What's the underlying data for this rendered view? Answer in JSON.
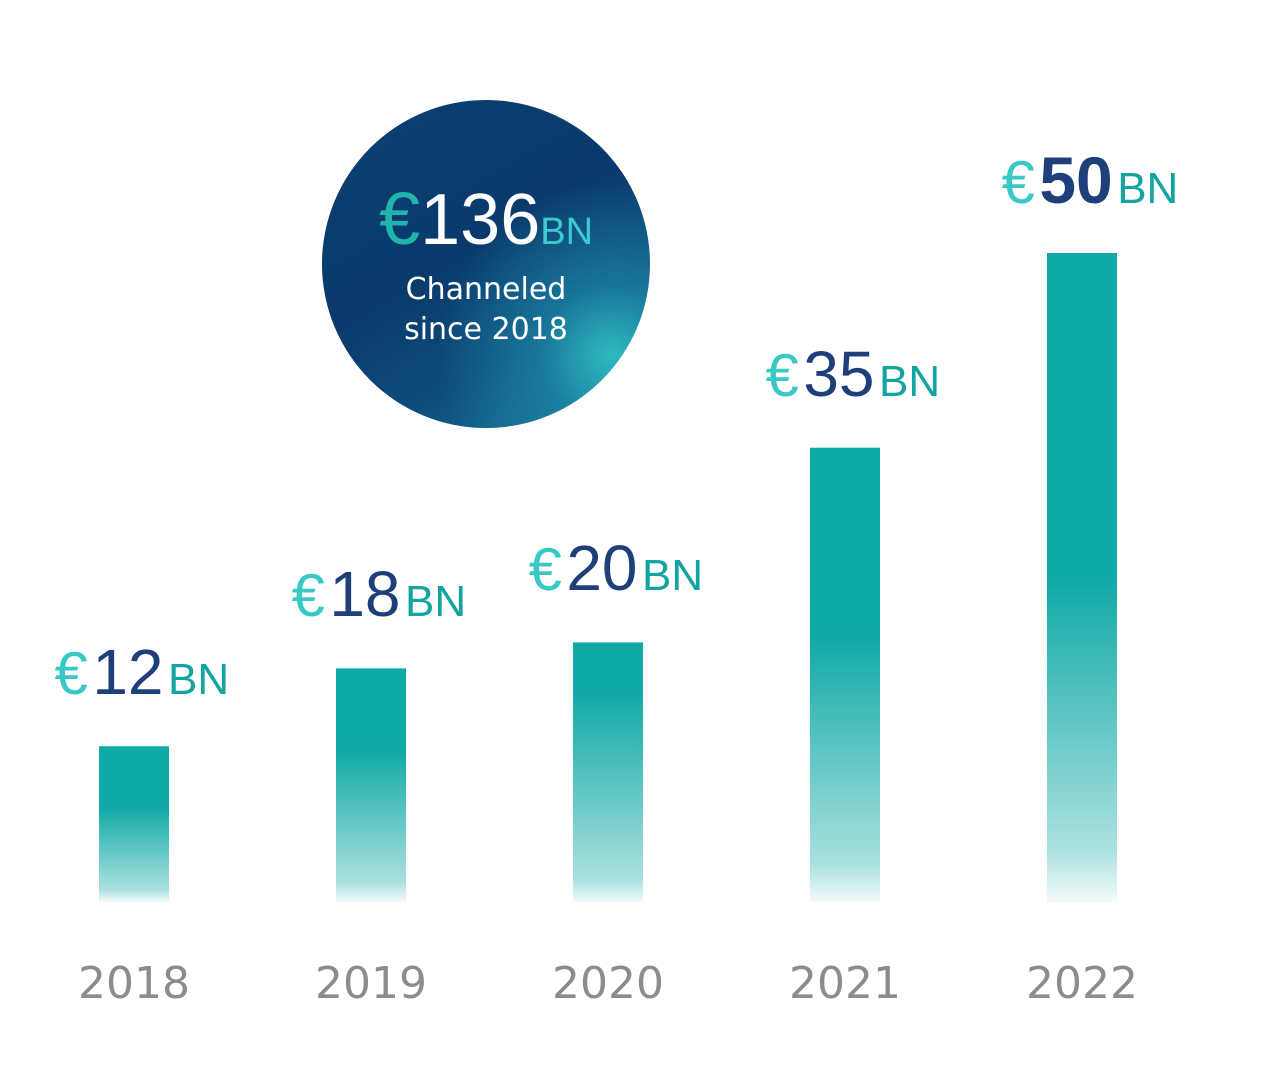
{
  "chart_data": {
    "type": "bar",
    "categories": [
      "2018",
      "2019",
      "2020",
      "2021",
      "2022"
    ],
    "values": [
      12,
      18,
      20,
      35,
      50
    ],
    "currency_symbol": "€",
    "unit": "BN",
    "highlight_index": 4,
    "colors": {
      "bar": "#0fa9a6",
      "currency": "#38c9c6",
      "value": "#1f3f7a",
      "unit": "#12a4a0",
      "year": "#8c8c8c"
    }
  },
  "summary": {
    "currency_symbol": "€",
    "total": "136",
    "unit": "BN",
    "caption_line1": "Channeled",
    "caption_line2": "since 2018"
  }
}
